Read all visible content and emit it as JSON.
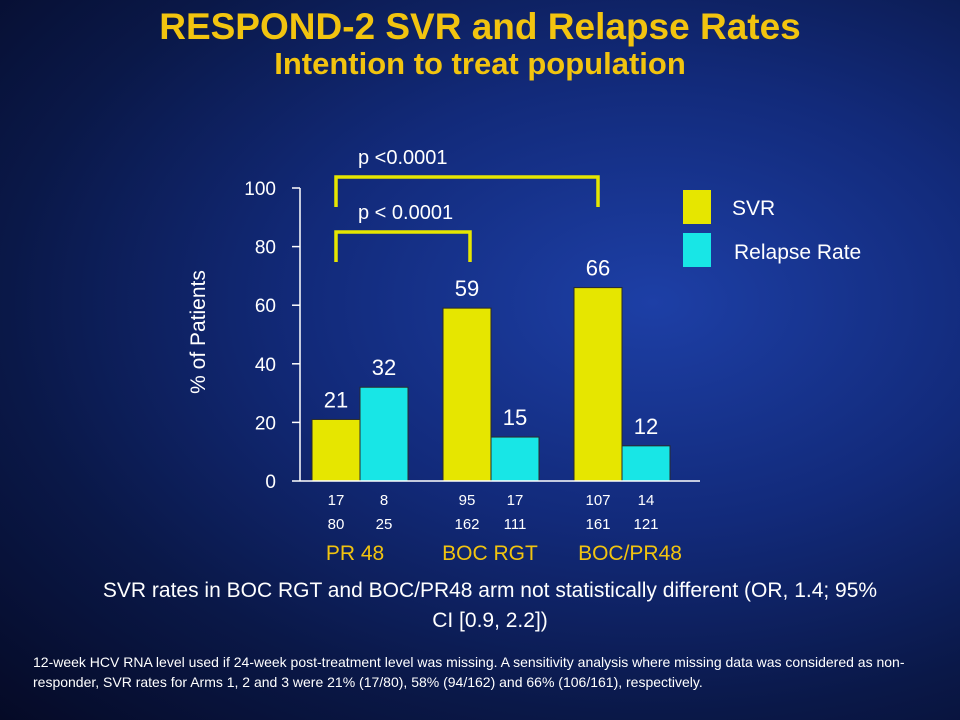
{
  "title": "RESPOND-2 SVR and Relapse Rates",
  "subtitle": "Intention to treat population",
  "chart_data": {
    "type": "bar",
    "ylabel": "% of Patients",
    "ylim": [
      0,
      100
    ],
    "yticks": [
      "0",
      "20",
      "40",
      "60",
      "80",
      "100"
    ],
    "categories": [
      "PR 48",
      "BOC RGT",
      "BOC/PR48"
    ],
    "series": [
      {
        "name": "SVR",
        "color": "#e6e600",
        "values": [
          21,
          59,
          66
        ],
        "data_labels": [
          "21",
          "59",
          "66"
        ],
        "numerators": [
          "17",
          "95",
          "107"
        ],
        "denominators": [
          "80",
          "162",
          "161"
        ]
      },
      {
        "name": "Relapse Rate",
        "color": "#18e6e6",
        "values": [
          32,
          15,
          12
        ],
        "data_labels": [
          "32",
          "15",
          "12"
        ],
        "numerators": [
          "8",
          "17",
          "14"
        ],
        "denominators": [
          "25",
          "111",
          "121"
        ]
      }
    ],
    "comparisons": [
      {
        "label": "p < 0.0001",
        "from_category": 0,
        "to_category": 1
      },
      {
        "label": "p <0.0001",
        "from_category": 0,
        "to_category": 2
      }
    ],
    "legend_position": "top-right",
    "grid": false
  },
  "note": "SVR rates in BOC RGT and BOC/PR48 arm not statistically different (OR, 1.4; 95% CI [0.9, 2.2])",
  "footnote": "12-week HCV RNA level used if 24-week post-treatment level was missing.  A sensitivity analysis where missing data was considered as non-responder, SVR rates for Arms 1, 2 and 3 were 21% (17/80), 58% (94/162) and 66% (106/161), respectively.",
  "colors": {
    "title": "#f2c40f",
    "bracket": "#e6e600",
    "axis": "#ffffff"
  }
}
